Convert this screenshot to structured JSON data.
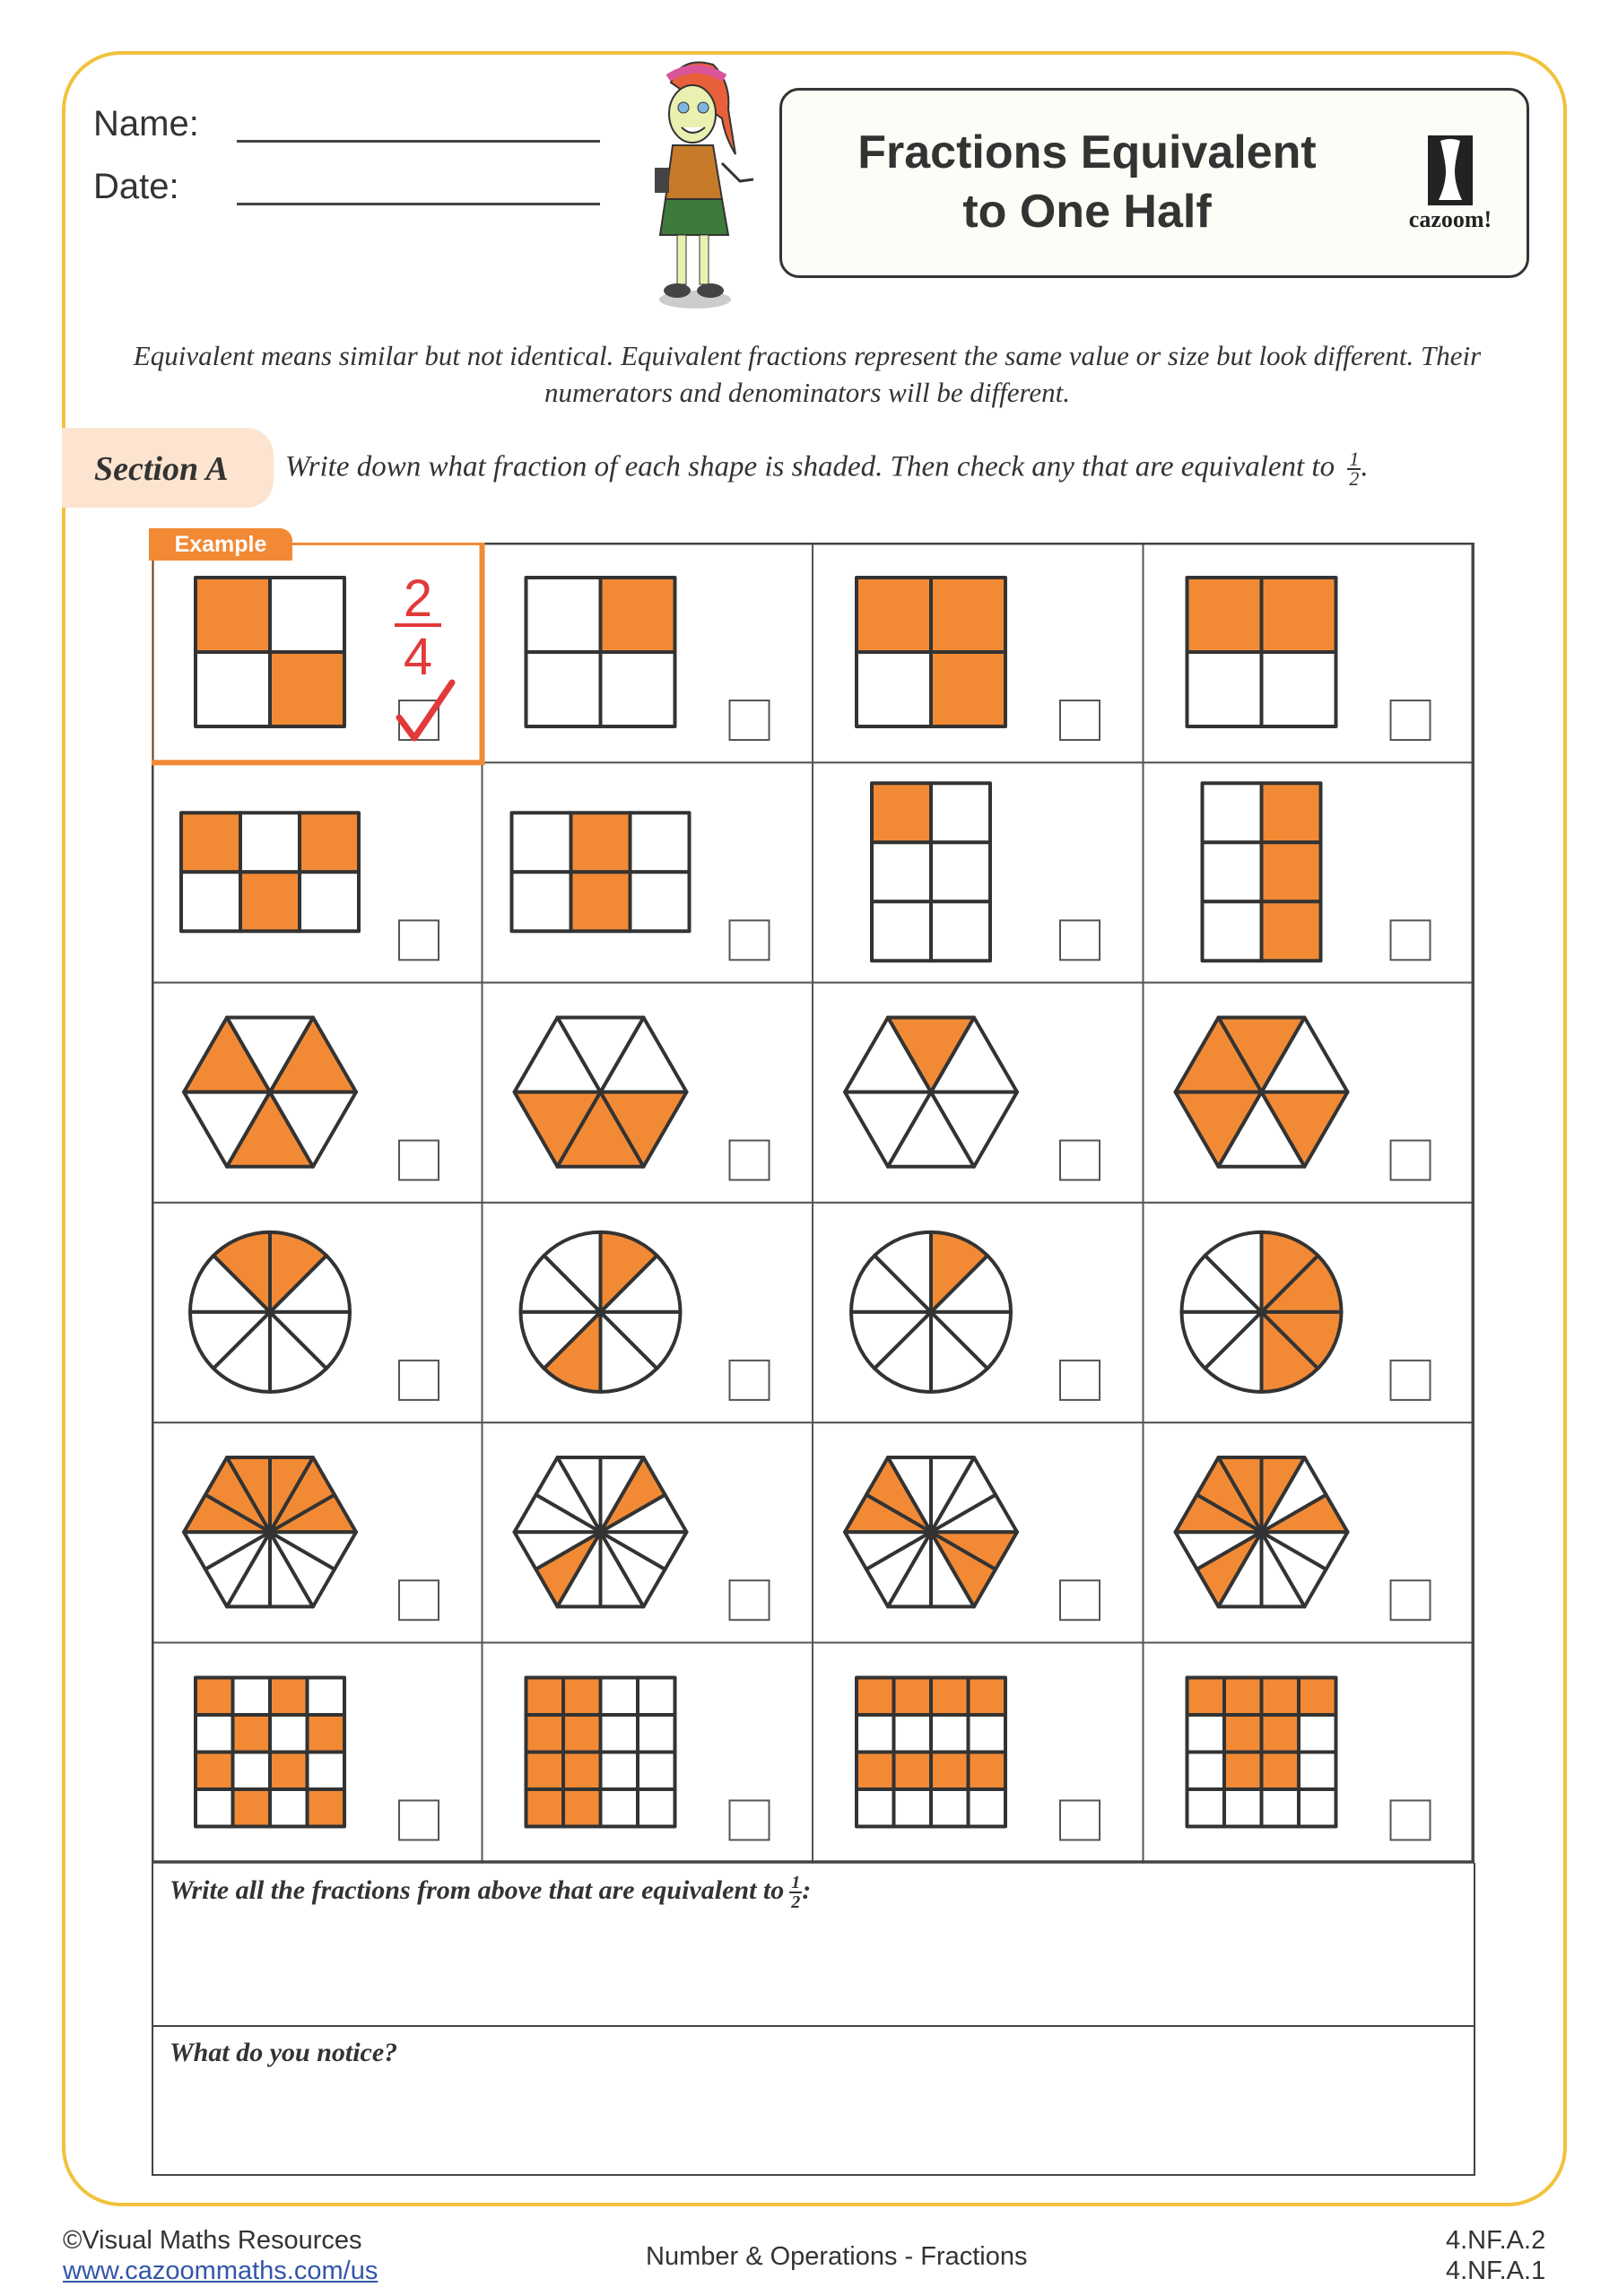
{
  "header": {
    "name_label": "Name:",
    "date_label": "Date:",
    "title_line1": "Fractions Equivalent",
    "title_line2": "to One Half",
    "logo_text": "cazoom!"
  },
  "intro": {
    "text": "Equivalent means similar but not identical. Equivalent fractions represent the same value or size but look different. Their numerators and denominators will be different."
  },
  "section": {
    "label": "Section A",
    "instruction": "Write down what fraction of each shape is shaded. Then check any that are equivalent to",
    "half_num": "1",
    "half_den": "2",
    "period": "."
  },
  "colors": {
    "shade": "#F28A35",
    "frame": "#F2C23C",
    "example": "#F28A35",
    "answer": "#E23A3A",
    "pill": "#FCE4D0"
  },
  "example": {
    "tag": "Example",
    "numerator": "2",
    "denominator": "4",
    "checked": true
  },
  "shapes": [
    [
      {
        "type": "grid",
        "cols": 2,
        "rows": 2,
        "shaded": [
          0,
          3
        ]
      },
      {
        "type": "grid",
        "cols": 2,
        "rows": 2,
        "shaded": [
          1
        ]
      },
      {
        "type": "grid",
        "cols": 2,
        "rows": 2,
        "shaded": [
          0,
          1,
          3
        ]
      },
      {
        "type": "grid",
        "cols": 2,
        "rows": 2,
        "shaded": [
          0,
          1
        ]
      }
    ],
    [
      {
        "type": "grid",
        "cols": 3,
        "rows": 2,
        "shaded": [
          0,
          2,
          4
        ]
      },
      {
        "type": "grid",
        "cols": 3,
        "rows": 2,
        "shaded": [
          1,
          4
        ]
      },
      {
        "type": "grid",
        "cols": 2,
        "rows": 3,
        "shaded": [
          0
        ]
      },
      {
        "type": "grid",
        "cols": 2,
        "rows": 3,
        "shaded": [
          1,
          3,
          5
        ]
      }
    ],
    [
      {
        "type": "hexagon",
        "parts": 6,
        "shaded": [
          0,
          2,
          4
        ]
      },
      {
        "type": "hexagon",
        "parts": 6,
        "shaded": [
          3,
          4,
          5
        ]
      },
      {
        "type": "hexagon",
        "parts": 6,
        "shaded": [
          1
        ]
      },
      {
        "type": "hexagon",
        "parts": 6,
        "shaded": [
          1,
          2,
          3,
          5
        ]
      }
    ],
    [
      {
        "type": "circle",
        "parts": 8,
        "shaded": [
          1,
          2
        ]
      },
      {
        "type": "circle",
        "parts": 8,
        "shaded": [
          1,
          5
        ]
      },
      {
        "type": "circle",
        "parts": 8,
        "shaded": [
          1
        ]
      },
      {
        "type": "circle",
        "parts": 8,
        "shaded": [
          0,
          1,
          6,
          7
        ]
      }
    ],
    [
      {
        "type": "hexagon",
        "parts": 12,
        "shaded": [
          0,
          1,
          2,
          3,
          4,
          5
        ]
      },
      {
        "type": "hexagon",
        "parts": 12,
        "shaded": [
          1,
          7
        ]
      },
      {
        "type": "hexagon",
        "parts": 12,
        "shaded": [
          4,
          5,
          10,
          11
        ]
      },
      {
        "type": "hexagon",
        "parts": 12,
        "shaded": [
          0,
          2,
          3,
          4,
          5,
          7
        ]
      }
    ],
    [
      {
        "type": "grid",
        "cols": 4,
        "rows": 4,
        "shaded": [
          0,
          2,
          5,
          7,
          8,
          10,
          13,
          15
        ]
      },
      {
        "type": "grid",
        "cols": 4,
        "rows": 4,
        "shaded": [
          0,
          1,
          4,
          5,
          8,
          9,
          12,
          13
        ]
      },
      {
        "type": "grid",
        "cols": 4,
        "rows": 4,
        "shaded": [
          0,
          1,
          2,
          3,
          8,
          9,
          10,
          11
        ]
      },
      {
        "type": "grid",
        "cols": 4,
        "rows": 4,
        "shaded": [
          0,
          1,
          2,
          3,
          5,
          6,
          9,
          10
        ]
      }
    ]
  ],
  "answers": {
    "q1": "Write all the fractions from above that are equivalent to",
    "q1_num": "1",
    "q1_den": "2",
    "q1_colon": ":",
    "q2": "What do you notice?"
  },
  "footer": {
    "copyright": "©Visual Maths Resources",
    "url": "www.cazoommaths.com/us",
    "topic": "Number & Operations - Fractions",
    "standard1": "4.NF.A.2",
    "standard2": "4.NF.A.1"
  }
}
